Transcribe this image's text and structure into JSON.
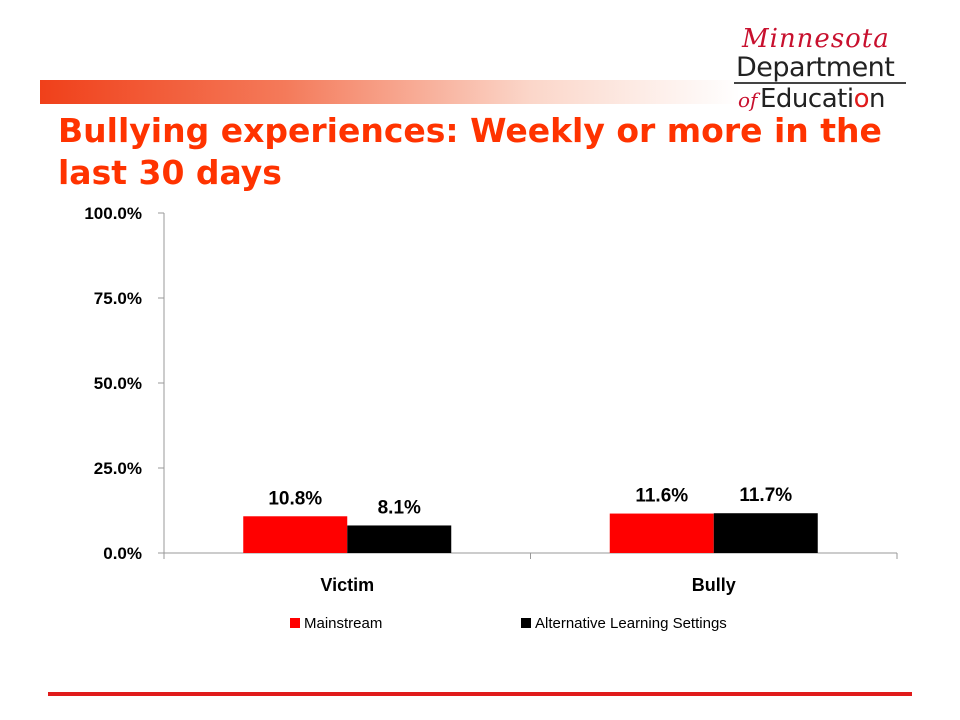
{
  "logo": {
    "script_text": "Minnesota",
    "department_text": "Department",
    "of_text": "of",
    "education_text_prefix": "Educati",
    "education_text_apple": "o",
    "education_text_suffix": "n"
  },
  "slide": {
    "title": "Bullying experiences: Weekly or more in the last 30 days"
  },
  "chart_data": {
    "type": "bar",
    "categories": [
      "Victim",
      "Bully"
    ],
    "series": [
      {
        "name": "Mainstream",
        "values": [
          10.8,
          11.6
        ],
        "labels": [
          "10.8%",
          "11.6%"
        ],
        "color": "#ff0000"
      },
      {
        "name": "Alternative Learning Settings",
        "values": [
          8.1,
          11.7
        ],
        "labels": [
          "8.1%",
          "11.7%"
        ],
        "color": "#000000"
      }
    ],
    "y_ticks": [
      "0.0%",
      "25.0%",
      "50.0%",
      "75.0%",
      "100.0%"
    ],
    "ylim": [
      0,
      100
    ],
    "grid": false,
    "legend_position": "bottom"
  },
  "colors": {
    "title": "#ff3300",
    "accent": "#e01b1b"
  }
}
